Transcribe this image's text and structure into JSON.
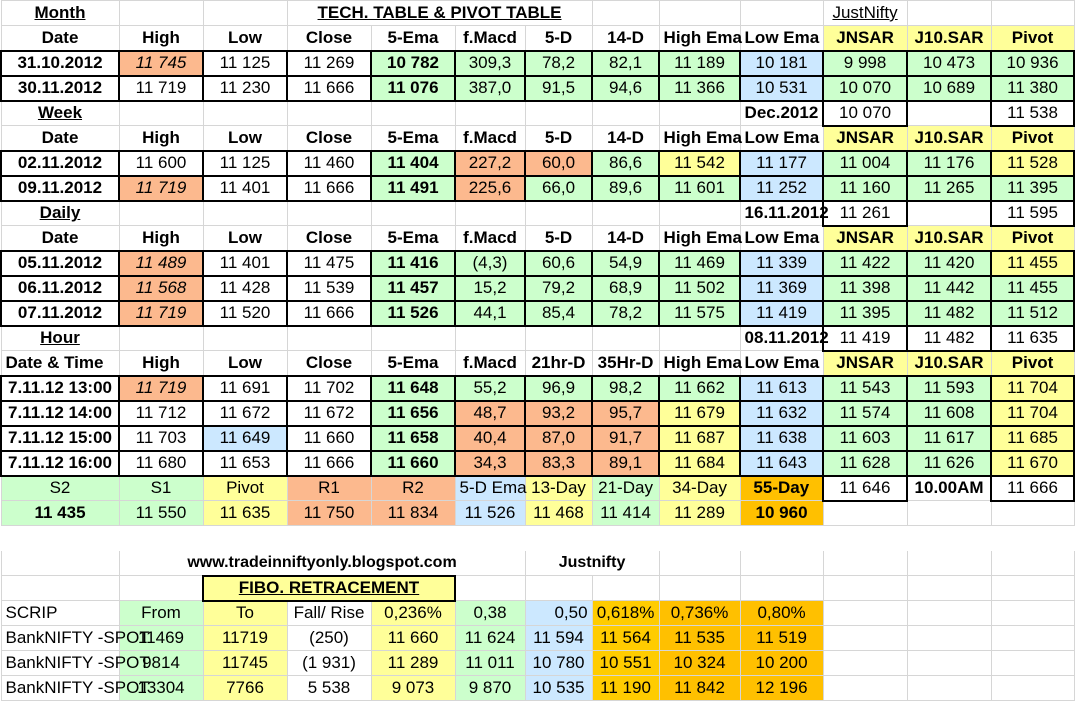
{
  "header": {
    "month_label": "Month",
    "title": "TECH. TABLE  &  PIVOT TABLE",
    "brand": "JustNifty"
  },
  "cols": {
    "date": "Date",
    "datetime": "Date & Time",
    "high": "High",
    "low": "Low",
    "close": "Close",
    "ema5": "5-Ema",
    "fmacd": "f.Macd",
    "d5": "5-D",
    "d14": "14-D",
    "hr21": "21hr-D",
    "hr35": "35Hr-D",
    "high_ema": "High Ema",
    "low_ema": "Low Ema",
    "jnsar": "JNSAR",
    "j10sar": "J10.SAR",
    "pivot": "Pivot"
  },
  "month": {
    "rows": [
      {
        "date": "31.10.2012",
        "high": "11 745",
        "low": "11 125",
        "close": "11 269",
        "ema5": "10 782",
        "fmacd": "309,3",
        "d5": "78,2",
        "d14": "82,1",
        "high_ema": "11 189",
        "low_ema": "10 181",
        "jnsar": "9 998",
        "j10sar": "10 473",
        "pivot": "10 936"
      },
      {
        "date": "30.11.2012",
        "high": "11 719",
        "low": "11 230",
        "close": "11 666",
        "ema5": "11 076",
        "fmacd": "387,0",
        "d5": "91,5",
        "d14": "94,6",
        "high_ema": "11 366",
        "low_ema": "10 531",
        "jnsar": "10 070",
        "j10sar": "10 689",
        "pivot": "11 380"
      }
    ]
  },
  "week": {
    "label": "Week",
    "ref_date": "Dec.2012",
    "ref_jnsar": "10 070",
    "ref_pivot": "11 538",
    "rows": [
      {
        "date": "02.11.2012",
        "high": "11 600",
        "low": "11 125",
        "close": "11 460",
        "ema5": "11 404",
        "fmacd": "227,2",
        "d5": "60,0",
        "d14": "86,6",
        "high_ema": "11 542",
        "low_ema": "11 177",
        "jnsar": "11 004",
        "j10sar": "11 176",
        "pivot": "11 528"
      },
      {
        "date": "09.11.2012",
        "high": "11 719",
        "low": "11 401",
        "close": "11 666",
        "ema5": "11 491",
        "fmacd": "225,6",
        "d5": "66,0",
        "d14": "89,6",
        "high_ema": "11 601",
        "low_ema": "11 252",
        "jnsar": "11 160",
        "j10sar": "11 265",
        "pivot": "11 395"
      }
    ]
  },
  "daily": {
    "label": "Daily",
    "ref_date": "16.11.2012",
    "ref_jnsar": "11 261",
    "ref_pivot": "11 595",
    "rows": [
      {
        "date": "05.11.2012",
        "high": "11 489",
        "low": "11 401",
        "close": "11 475",
        "ema5": "11 416",
        "fmacd": "(4,3)",
        "d5": "60,6",
        "d14": "54,9",
        "high_ema": "11 469",
        "low_ema": "11 339",
        "jnsar": "11 422",
        "j10sar": "11 420",
        "pivot": "11 455"
      },
      {
        "date": "06.11.2012",
        "high": "11 568",
        "low": "11 428",
        "close": "11 539",
        "ema5": "11 457",
        "fmacd": "15,2",
        "d5": "79,2",
        "d14": "68,9",
        "high_ema": "11 502",
        "low_ema": "11 369",
        "jnsar": "11 398",
        "j10sar": "11 442",
        "pivot": "11 455"
      },
      {
        "date": "07.11.2012",
        "high": "11 719",
        "low": "11 520",
        "close": "11 666",
        "ema5": "11 526",
        "fmacd": "44,1",
        "d5": "85,4",
        "d14": "78,2",
        "high_ema": "11 575",
        "low_ema": "11 419",
        "jnsar": "11 395",
        "j10sar": "11 482",
        "pivot": "11 512"
      }
    ]
  },
  "hour": {
    "label": "Hour",
    "ref_date": "08.11.2012",
    "ref_jnsar": "11 419",
    "ref_j10sar": "11 482",
    "ref_pivot": "11 635",
    "rows": [
      {
        "date": "7.11.12 13:00",
        "high": "11 719",
        "low": "11 691",
        "close": "11 702",
        "ema5": "11 648",
        "fmacd": "55,2",
        "d5": "96,9",
        "d14": "98,2",
        "high_ema": "11 662",
        "low_ema": "11 613",
        "jnsar": "11 543",
        "j10sar": "11 593",
        "pivot": "11 704"
      },
      {
        "date": "7.11.12 14:00",
        "high": "11 712",
        "low": "11 672",
        "close": "11 672",
        "ema5": "11 656",
        "fmacd": "48,7",
        "d5": "93,2",
        "d14": "95,7",
        "high_ema": "11 679",
        "low_ema": "11 632",
        "jnsar": "11 574",
        "j10sar": "11 608",
        "pivot": "11 704"
      },
      {
        "date": "7.11.12 15:00",
        "high": "11 703",
        "low": "11 649",
        "close": "11 660",
        "ema5": "11 658",
        "fmacd": "40,4",
        "d5": "87,0",
        "d14": "91,7",
        "high_ema": "11 687",
        "low_ema": "11 638",
        "jnsar": "11 603",
        "j10sar": "11 617",
        "pivot": "11 685"
      },
      {
        "date": "7.11.12 16:00",
        "high": "11 680",
        "low": "11 653",
        "close": "11 666",
        "ema5": "11 660",
        "fmacd": "34,3",
        "d5": "83,3",
        "d14": "89,1",
        "high_ema": "11 684",
        "low_ema": "11 643",
        "jnsar": "11 628",
        "j10sar": "11 626",
        "pivot": "11 670"
      }
    ]
  },
  "levels": {
    "labels": [
      "S2",
      "S1",
      "Pivot",
      "R1",
      "R2",
      "5-D Ema",
      "13-Day",
      "21-Day",
      "34-Day",
      "55-Day"
    ],
    "values": [
      "11 435",
      "11 550",
      "11 635",
      "11 750",
      "11 834",
      "11 526",
      "11 468",
      "11 414",
      "11 289",
      "10 960"
    ],
    "extra_jnsar": "11 646",
    "time": "10.00AM",
    "extra_pivot": "11 666"
  },
  "footer": {
    "site": "www.tradeinniftyonly.blogspot.com",
    "brand": "Justnifty"
  },
  "fibo": {
    "title": "FIBO. RETRACEMENT",
    "headers": [
      "SCRIP",
      "From",
      "To",
      "Fall/ Rise",
      "0,236%",
      "0,38",
      "0,50",
      "0,618%",
      "0,736%",
      "0,80%"
    ],
    "rows": [
      [
        "BankNIFTY -SPOT",
        "11469",
        "11719",
        "(250)",
        "11 660",
        "11 624",
        "11 594",
        "11 564",
        "11 535",
        "11 519"
      ],
      [
        "BankNIFTY -SPOT",
        "9814",
        "11745",
        "(1 931)",
        "11 289",
        "11 011",
        "10 780",
        "10 551",
        "10 324",
        "10 200"
      ],
      [
        "BankNIFTY -SPOT",
        "13304",
        "7766",
        "5 538",
        "9 073",
        "9 870",
        "10 535",
        "11 190",
        "11 842",
        "12 196"
      ]
    ]
  }
}
